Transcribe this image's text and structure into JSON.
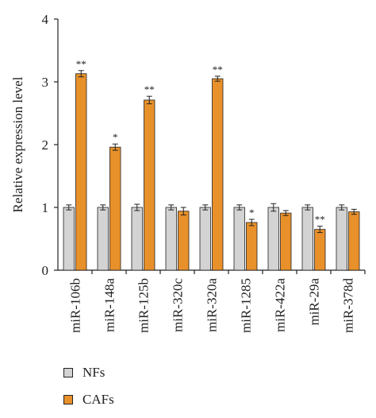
{
  "chart_data": {
    "type": "bar",
    "title": "",
    "xlabel": "",
    "ylabel": "Relative expression level",
    "ylim": [
      0,
      4
    ],
    "yticks": [
      "0",
      "1",
      "2",
      "3",
      "4"
    ],
    "categories": [
      "miR-106b",
      "miR-148a",
      "miR-125b",
      "miR-320c",
      "miR-320a",
      "miR-1285",
      "miR-422a",
      "miR-29a",
      "miR-378d"
    ],
    "series": [
      {
        "name": "NFs",
        "color": "#d3d3d3",
        "values": [
          1.0,
          1.0,
          1.0,
          1.0,
          1.0,
          1.0,
          1.0,
          1.0,
          1.0
        ],
        "errors": [
          0.04,
          0.04,
          0.05,
          0.04,
          0.04,
          0.04,
          0.06,
          0.04,
          0.04
        ],
        "significance": [
          "",
          "",
          "",
          "",
          "",
          "",
          "",
          "",
          ""
        ]
      },
      {
        "name": "CAFs",
        "color": "#e8902a",
        "values": [
          3.13,
          1.96,
          2.71,
          0.94,
          3.05,
          0.76,
          0.91,
          0.65,
          0.93
        ],
        "errors": [
          0.05,
          0.05,
          0.06,
          0.06,
          0.04,
          0.05,
          0.04,
          0.05,
          0.04
        ],
        "significance": [
          "**",
          "*",
          "**",
          "",
          "**",
          "*",
          "",
          "**",
          ""
        ]
      }
    ],
    "legend_position": "bottom-left",
    "grid": false
  }
}
